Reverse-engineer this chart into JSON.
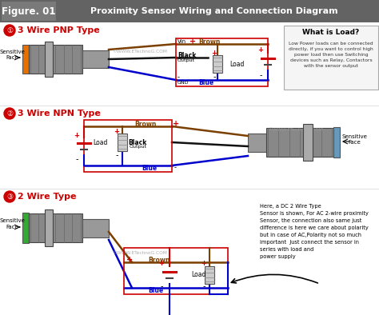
{
  "title": "Proximity Sensor Wiring and Connection Diagram",
  "figure_label": "Figure. 01",
  "bg_color": "#ffffff",
  "header_bg": "#636363",
  "fig_box_bg": "#7a7a7a",
  "header_text_color": "#ffffff",
  "red_color": "#cc0000",
  "dark_red": "#aa0000",
  "wire_brown": "#7B3F00",
  "wire_blue": "#0000cc",
  "wire_black": "#111111",
  "gray_sensor": "#888888",
  "light_gray": "#aaaaaa",
  "dark_gray": "#444444",
  "load_color": "#bbbbbb",
  "what_box_bg": "#f5f5f5",
  "watermark": "©WWW.ETechnoG.COM",
  "s1_title": "3 Wire PNP Type",
  "s2_title": "3 Wire NPN Type",
  "s3_title": "2 Wire Type",
  "what_title": "What is Load?",
  "what_body": "Low Power loads can be connected\ndirectly, if you want to control high\npower load then use Switching\ndevices such as Relay, Contactors\nwith the sensor output",
  "dc2_text": "Here, a DC 2 Wire Type\nSensor is shown, For AC 2-wire proximity\nSensor, the connection also same just\ndifference is here we care about polarity\nbut in case of AC,Polarity not so much\nimportant  Just connect the sensor in\nseries with load and\npower supply"
}
